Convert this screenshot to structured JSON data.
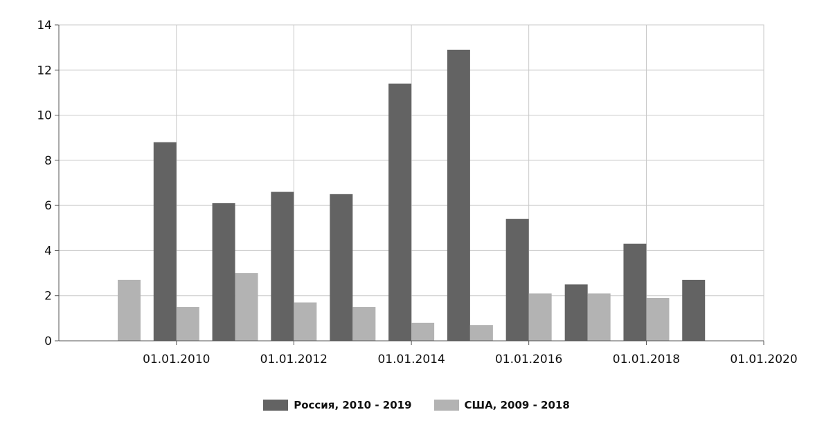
{
  "chart_data": {
    "type": "bar",
    "x_axis_type": "date",
    "x_ticks": [
      "01.01.2010",
      "01.01.2012",
      "01.01.2014",
      "01.01.2016",
      "01.01.2018",
      "01.01.2020"
    ],
    "y_ticks": [
      "0",
      "2",
      "4",
      "6",
      "8",
      "10",
      "12",
      "14"
    ],
    "xlim": [
      "2008-01-01",
      "2020-01-01"
    ],
    "ylim": [
      0,
      14
    ],
    "grid": true,
    "legend_position": "bottom-center",
    "series": [
      {
        "name": "Россия, 2010 - 2019",
        "color": "#636363",
        "points": [
          {
            "x": "2010",
            "y": 8.8
          },
          {
            "x": "2011",
            "y": 6.1
          },
          {
            "x": "2012",
            "y": 6.6
          },
          {
            "x": "2013",
            "y": 6.5
          },
          {
            "x": "2014",
            "y": 11.4
          },
          {
            "x": "2015",
            "y": 12.9
          },
          {
            "x": "2016",
            "y": 5.4
          },
          {
            "x": "2017",
            "y": 2.5
          },
          {
            "x": "2018",
            "y": 4.3
          },
          {
            "x": "2019",
            "y": 2.7
          }
        ]
      },
      {
        "name": "США, 2009 - 2018",
        "color": "#b3b3b3",
        "points": [
          {
            "x": "2009",
            "y": 2.7
          },
          {
            "x": "2010",
            "y": 1.5
          },
          {
            "x": "2011",
            "y": 3.0
          },
          {
            "x": "2012",
            "y": 1.7
          },
          {
            "x": "2013",
            "y": 1.5
          },
          {
            "x": "2014",
            "y": 0.8
          },
          {
            "x": "2015",
            "y": 0.7
          },
          {
            "x": "2016",
            "y": 2.1
          },
          {
            "x": "2017",
            "y": 2.1
          },
          {
            "x": "2018",
            "y": 1.9
          }
        ]
      }
    ]
  }
}
